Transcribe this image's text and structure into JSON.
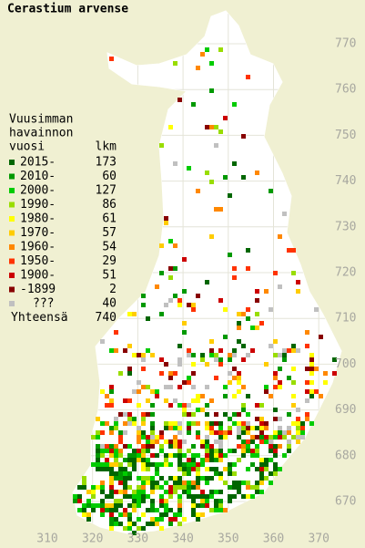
{
  "title": "Cerastium arvense",
  "legend": {
    "heading": [
      "Vuusimman",
      "havainnon"
    ],
    "year_header": "vuosi",
    "count_header": "lkm",
    "items": [
      {
        "label": "2015-",
        "count": "173",
        "color": "#006600"
      },
      {
        "label": "2010-",
        "count": "60",
        "color": "#009900"
      },
      {
        "label": "2000-",
        "count": "127",
        "color": "#00cc00"
      },
      {
        "label": "1990-",
        "count": "86",
        "color": "#99dd00"
      },
      {
        "label": "1980-",
        "count": "61",
        "color": "#ffff00"
      },
      {
        "label": "1970-",
        "count": "57",
        "color": "#ffcc00"
      },
      {
        "label": "1960-",
        "count": "54",
        "color": "#ff8800"
      },
      {
        "label": "1950-",
        "count": "29",
        "color": "#ff3300"
      },
      {
        "label": "1900-",
        "count": "51",
        "color": "#cc0000"
      },
      {
        "label": "-1899",
        "count": "2",
        "color": "#880000"
      },
      {
        "label": "???",
        "count": "40",
        "color": "#c0c0c0"
      }
    ],
    "total_label": "Yhteensä",
    "total_count": "740"
  },
  "x_ticks": [
    "310",
    "320",
    "330",
    "340",
    "350",
    "360",
    "370"
  ],
  "y_ticks": [
    "770",
    "760",
    "750",
    "740",
    "730",
    "720",
    "710",
    "700",
    "690",
    "680",
    "670"
  ]
}
